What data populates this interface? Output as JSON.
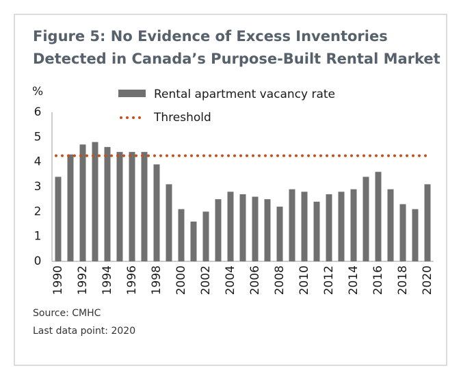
{
  "chart_data": {
    "type": "bar",
    "title_lines": [
      "Figure 5: No Evidence of Excess Inventories",
      "Detected in Canada’s Purpose-Built Rental Market"
    ],
    "y_label": "%",
    "categories": [
      "1990",
      null,
      "1992",
      null,
      "1994",
      null,
      "1996",
      null,
      "1998",
      null,
      "2000",
      null,
      "2002",
      null,
      "2004",
      null,
      "2006",
      null,
      "2008",
      null,
      "2010",
      null,
      "2012",
      null,
      "2014",
      null,
      "2016",
      null,
      "2018",
      null,
      "2020"
    ],
    "series": [
      {
        "name": "Rental apartment vacancy rate",
        "color": "#707070",
        "values": [
          3.4,
          4.3,
          4.7,
          4.8,
          4.6,
          4.4,
          4.4,
          4.4,
          3.9,
          3.1,
          2.1,
          1.6,
          2.0,
          2.5,
          2.8,
          2.7,
          2.6,
          2.5,
          2.2,
          2.9,
          2.8,
          2.4,
          2.7,
          2.8,
          2.9,
          3.4,
          3.6,
          2.9,
          2.3,
          2.1,
          3.1
        ]
      }
    ],
    "threshold": {
      "name": "Threshold",
      "color": "#c0501f",
      "value": 4.25
    },
    "ylim": [
      0,
      6
    ],
    "yticks": [
      0,
      1,
      2,
      3,
      4,
      5,
      6
    ],
    "notes": [
      "Source: CMHC",
      "Last data point: 2020"
    ]
  }
}
